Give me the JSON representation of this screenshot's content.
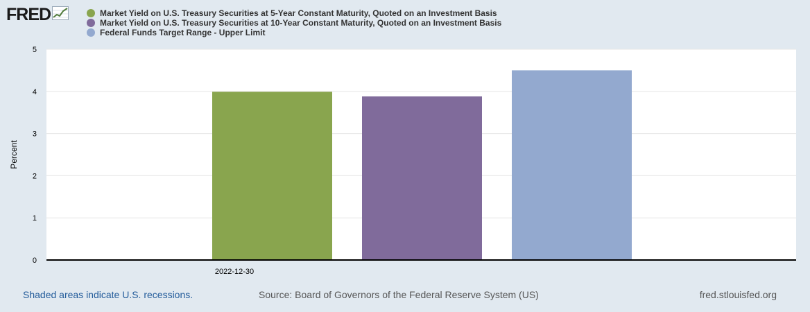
{
  "logo": {
    "text": "FRED"
  },
  "colors": {
    "series1": "#89a54e",
    "series2": "#806b9b",
    "series3": "#93a9cf",
    "background": "#e1e9f0",
    "plot_bg": "#ffffff",
    "link": "#225b9a"
  },
  "chart_data": {
    "type": "bar",
    "categories": [
      "2022-12-30"
    ],
    "series": [
      {
        "name": "Market Yield on U.S. Treasury Securities at 5-Year Constant Maturity, Quoted on an Investment Basis",
        "values": [
          3.99
        ]
      },
      {
        "name": "Market Yield on U.S. Treasury Securities at 10-Year Constant Maturity, Quoted on an Investment Basis",
        "values": [
          3.88
        ]
      },
      {
        "name": "Federal Funds Target Range - Upper Limit",
        "values": [
          4.5
        ]
      }
    ],
    "title": "",
    "xlabel": "",
    "ylabel": "Percent",
    "ylim": [
      0,
      5
    ],
    "yticks": [
      "0",
      "1",
      "2",
      "3",
      "4",
      "5"
    ],
    "grid": true,
    "legend": "top-left"
  },
  "footer": {
    "recessions_note": "Shaded areas indicate U.S. recessions.",
    "source": "Source: Board of Governors of the Federal Reserve System (US)",
    "site": "fred.stlouisfed.org"
  }
}
